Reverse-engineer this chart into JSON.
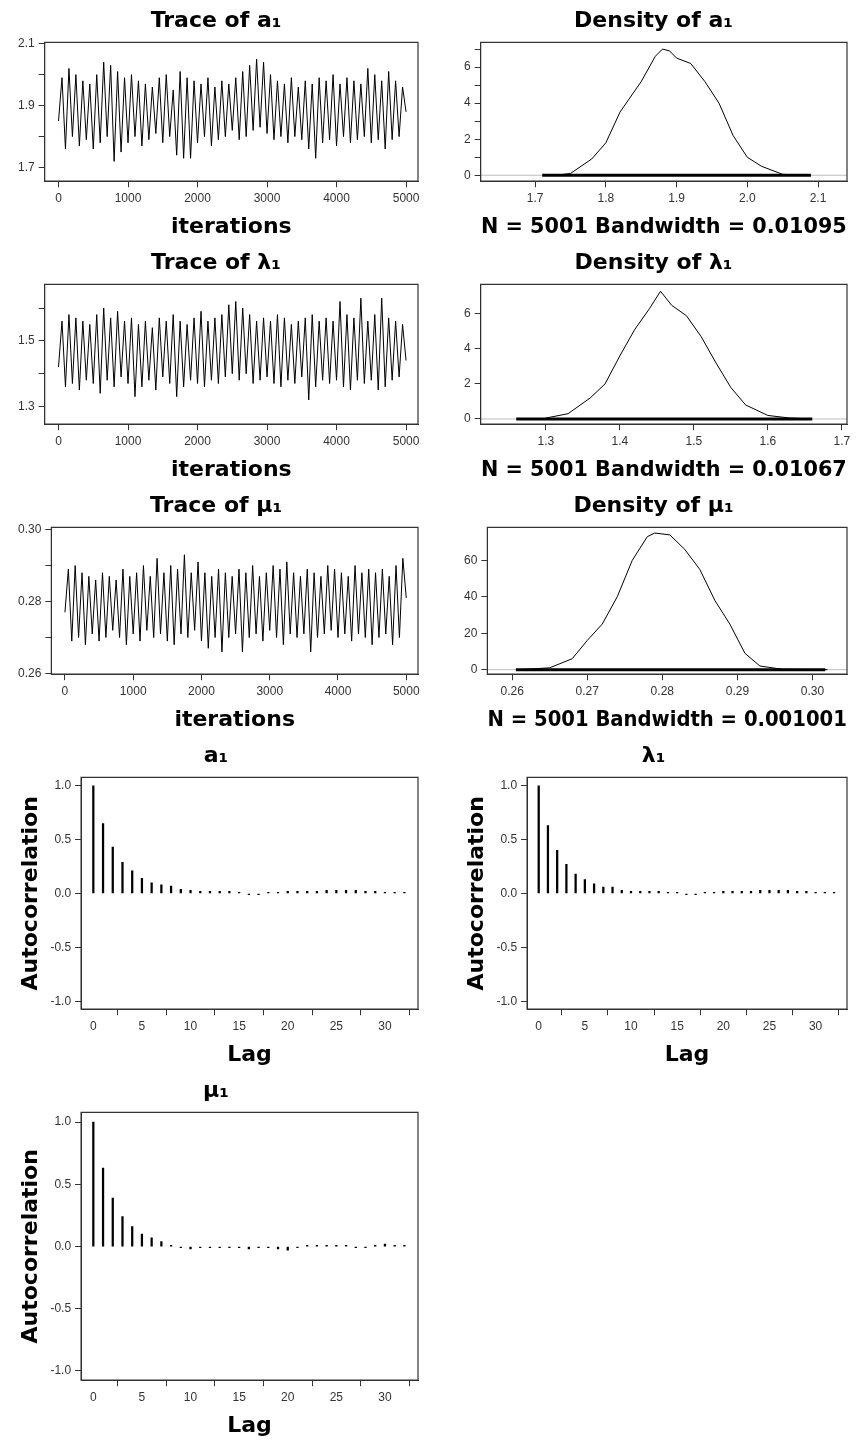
{
  "chart_data": [
    {
      "type": "line",
      "title": "Trace of a₁",
      "xlabel": "iterations",
      "xlim": [
        -199,
        5172
      ],
      "xticks": [
        0,
        1000,
        2000,
        3000,
        4000,
        5000
      ],
      "ylim": [
        1.656,
        2.104
      ],
      "yticks": [
        1.7,
        {
          "value": 1.8,
          "label": null
        },
        1.9,
        {
          "value": 2.0,
          "label": null
        },
        2.1
      ],
      "grid": false,
      "legend": false,
      "marker": "none",
      "line_style": "solid",
      "x": [
        0,
        50,
        100,
        150,
        200,
        250,
        300,
        350,
        400,
        450,
        500,
        550,
        600,
        650,
        700,
        750,
        800,
        850,
        900,
        950,
        1000,
        1050,
        1100,
        1150,
        1200,
        1250,
        1300,
        1350,
        1400,
        1450,
        1500,
        1550,
        1600,
        1650,
        1700,
        1750,
        1800,
        1850,
        1900,
        1950,
        2000,
        2050,
        2100,
        2150,
        2200,
        2250,
        2300,
        2350,
        2400,
        2450,
        2500,
        2550,
        2600,
        2650,
        2700,
        2750,
        2800,
        2850,
        2900,
        2950,
        3000,
        3050,
        3100,
        3150,
        3200,
        3250,
        3300,
        3350,
        3400,
        3450,
        3500,
        3550,
        3600,
        3650,
        3700,
        3750,
        3800,
        3850,
        3900,
        3950,
        4000,
        4050,
        4100,
        4150,
        4200,
        4250,
        4300,
        4350,
        4400,
        4450,
        4500,
        4550,
        4600,
        4650,
        4700,
        4750,
        4800,
        4850,
        4900,
        4950,
        5000
      ],
      "series": [
        {
          "color": "#000000",
          "values": [
            1.85,
            1.99,
            1.76,
            2.02,
            1.8,
            2.0,
            1.77,
            1.98,
            1.79,
            1.97,
            1.76,
            2.0,
            1.78,
            2.04,
            1.8,
            2.03,
            1.72,
            2.01,
            1.75,
            1.99,
            1.78,
            2.0,
            1.8,
            1.98,
            1.77,
            1.97,
            1.79,
            1.96,
            1.81,
            1.99,
            1.78,
            2.0,
            1.8,
            1.95,
            1.74,
            2.01,
            1.73,
            1.99,
            1.73,
            1.98,
            1.78,
            1.97,
            1.8,
            1.99,
            1.77,
            1.96,
            1.79,
            1.98,
            1.8,
            1.97,
            1.82,
            1.99,
            1.79,
            2.01,
            1.8,
            2.03,
            1.82,
            2.05,
            1.83,
            2.04,
            1.81,
            2.0,
            1.79,
            1.98,
            1.8,
            1.97,
            1.78,
            1.99,
            1.8,
            1.96,
            1.79,
            1.98,
            1.76,
            1.97,
            1.73,
            1.99,
            1.78,
            1.98,
            1.79,
            2.0,
            1.77,
            1.97,
            1.8,
            1.99,
            1.78,
            1.98,
            1.79,
            1.97,
            1.8,
            2.02,
            1.78,
            2.0,
            1.79,
            1.98,
            1.76,
            2.01,
            1.79,
            1.98,
            1.8,
            1.96,
            1.88
          ]
        }
      ]
    },
    {
      "type": "line",
      "title": "Density of a₁",
      "xlabel": "N = 5001 Bandwidth = 0.01095",
      "xlim": [
        1.623,
        2.141
      ],
      "xticks": [
        1.7,
        1.8,
        1.9,
        {
          "value": 2.0,
          "label": "2.0"
        },
        2.1
      ],
      "ylim": [
        -0.33,
        7.37
      ],
      "yticks": [
        0,
        {
          "value": 1,
          "label": null
        },
        2,
        {
          "value": 3,
          "label": null
        },
        4,
        {
          "value": 5,
          "label": null
        },
        6,
        {
          "value": 7,
          "label": null
        }
      ],
      "grid": false,
      "legend": false,
      "marker": "none",
      "line_style": "solid",
      "ref_lines": [
        {
          "axis": "y",
          "value": 0,
          "color": "#bebebe"
        }
      ],
      "series": [
        {
          "color": "#000000",
          "x": [
            1.73,
            1.75,
            1.78,
            1.8,
            1.82,
            1.85,
            1.87,
            1.88,
            1.89,
            1.9,
            1.92,
            1.94,
            1.96,
            1.98,
            2.0,
            2.02,
            2.05,
            2.08
          ],
          "values": [
            0,
            0.1,
            0.9,
            1.8,
            3.5,
            5.2,
            6.6,
            7.0,
            6.9,
            6.5,
            6.2,
            5.2,
            4.0,
            2.2,
            1.0,
            0.5,
            0.05,
            0
          ]
        },
        {
          "color": "#000000",
          "x": [
            1.71,
            2.09
          ],
          "values": [
            0,
            0
          ]
        }
      ]
    },
    {
      "type": "line",
      "title": "Trace of λ₁",
      "xlabel": "iterations",
      "xlim": [
        -199,
        5172
      ],
      "xticks": [
        0,
        1000,
        2000,
        3000,
        4000,
        5000
      ],
      "ylim": [
        1.246,
        1.672
      ],
      "yticks": [
        1.3,
        {
          "value": 1.4,
          "label": null
        },
        1.5,
        {
          "value": 1.6,
          "label": null
        }
      ],
      "grid": false,
      "legend": false,
      "marker": "none",
      "line_style": "solid",
      "x": [
        0,
        50,
        100,
        150,
        200,
        250,
        300,
        350,
        400,
        450,
        500,
        550,
        600,
        650,
        700,
        750,
        800,
        850,
        900,
        950,
        1000,
        1050,
        1100,
        1150,
        1200,
        1250,
        1300,
        1350,
        1400,
        1450,
        1500,
        1550,
        1600,
        1650,
        1700,
        1750,
        1800,
        1850,
        1900,
        1950,
        2000,
        2050,
        2100,
        2150,
        2200,
        2250,
        2300,
        2350,
        2400,
        2450,
        2500,
        2550,
        2600,
        2650,
        2700,
        2750,
        2800,
        2850,
        2900,
        2950,
        3000,
        3050,
        3100,
        3150,
        3200,
        3250,
        3300,
        3350,
        3400,
        3450,
        3500,
        3550,
        3600,
        3650,
        3700,
        3750,
        3800,
        3850,
        3900,
        3950,
        4000,
        4050,
        4100,
        4150,
        4200,
        4250,
        4300,
        4350,
        4400,
        4450,
        4500,
        4550,
        4600,
        4650,
        4700,
        4750,
        4800,
        4850,
        4900,
        4950,
        5000
      ],
      "series": [
        {
          "color": "#000000",
          "values": [
            1.42,
            1.56,
            1.36,
            1.58,
            1.37,
            1.57,
            1.35,
            1.56,
            1.38,
            1.55,
            1.37,
            1.58,
            1.34,
            1.6,
            1.38,
            1.57,
            1.36,
            1.59,
            1.39,
            1.56,
            1.37,
            1.57,
            1.33,
            1.55,
            1.36,
            1.56,
            1.38,
            1.54,
            1.35,
            1.57,
            1.39,
            1.56,
            1.37,
            1.58,
            1.33,
            1.56,
            1.36,
            1.55,
            1.38,
            1.57,
            1.37,
            1.59,
            1.36,
            1.56,
            1.38,
            1.57,
            1.37,
            1.58,
            1.39,
            1.61,
            1.4,
            1.62,
            1.38,
            1.6,
            1.4,
            1.58,
            1.37,
            1.56,
            1.38,
            1.57,
            1.39,
            1.56,
            1.37,
            1.58,
            1.36,
            1.57,
            1.38,
            1.55,
            1.37,
            1.56,
            1.39,
            1.57,
            1.32,
            1.58,
            1.36,
            1.56,
            1.38,
            1.57,
            1.37,
            1.56,
            1.38,
            1.62,
            1.36,
            1.58,
            1.35,
            1.57,
            1.38,
            1.63,
            1.37,
            1.56,
            1.38,
            1.58,
            1.35,
            1.63,
            1.36,
            1.57,
            1.38,
            1.56,
            1.39,
            1.55,
            1.44
          ]
        }
      ]
    },
    {
      "type": "line",
      "title": "Density of λ₁",
      "xlabel": "N = 5001 Bandwidth = 0.01067",
      "xlim": [
        1.212,
        1.707
      ],
      "xticks": [
        1.3,
        1.4,
        1.5,
        1.6,
        1.7
      ],
      "ylim": [
        -0.3,
        7.69
      ],
      "yticks": [
        0,
        2,
        4,
        6
      ],
      "grid": false,
      "legend": false,
      "marker": "none",
      "line_style": "solid",
      "ref_lines": [
        {
          "axis": "y",
          "value": 0,
          "color": "#bebebe"
        }
      ],
      "series": [
        {
          "color": "#000000",
          "x": [
            1.3,
            1.33,
            1.36,
            1.38,
            1.4,
            1.42,
            1.44,
            1.455,
            1.47,
            1.49,
            1.51,
            1.53,
            1.55,
            1.57,
            1.6,
            1.63,
            1.66
          ],
          "values": [
            0.05,
            0.3,
            1.2,
            2.0,
            3.6,
            5.1,
            6.3,
            7.3,
            6.5,
            5.9,
            4.7,
            3.2,
            1.8,
            0.8,
            0.2,
            0.05,
            0
          ]
        },
        {
          "color": "#000000",
          "x": [
            1.26,
            1.66
          ],
          "values": [
            0,
            0
          ]
        }
      ]
    },
    {
      "type": "line",
      "title": "Trace of μ₁",
      "xlabel": "iterations",
      "xlim": [
        -199,
        5172
      ],
      "xticks": [
        0,
        1000,
        2000,
        3000,
        4000,
        5000
      ],
      "ylim": [
        0.2598,
        0.3006
      ],
      "yticks": [
        {
          "value": 0.26,
          "label": "0.26"
        },
        {
          "value": 0.27,
          "label": null
        },
        {
          "value": 0.28,
          "label": "0.28"
        },
        {
          "value": 0.29,
          "label": null
        },
        {
          "value": 0.3,
          "label": "0.30"
        }
      ],
      "grid": false,
      "legend": false,
      "marker": "none",
      "line_style": "solid",
      "x": [
        0,
        50,
        100,
        150,
        200,
        250,
        300,
        350,
        400,
        450,
        500,
        550,
        600,
        650,
        700,
        750,
        800,
        850,
        900,
        950,
        1000,
        1050,
        1100,
        1150,
        1200,
        1250,
        1300,
        1350,
        1400,
        1450,
        1500,
        1550,
        1600,
        1650,
        1700,
        1750,
        1800,
        1850,
        1900,
        1950,
        2000,
        2050,
        2100,
        2150,
        2200,
        2250,
        2300,
        2350,
        2400,
        2450,
        2500,
        2550,
        2600,
        2650,
        2700,
        2750,
        2800,
        2850,
        2900,
        2950,
        3000,
        3050,
        3100,
        3150,
        3200,
        3250,
        3300,
        3350,
        3400,
        3450,
        3500,
        3550,
        3600,
        3650,
        3700,
        3750,
        3800,
        3850,
        3900,
        3950,
        4000,
        4050,
        4100,
        4150,
        4200,
        4250,
        4300,
        4350,
        4400,
        4450,
        4500,
        4550,
        4600,
        4650,
        4700,
        4750,
        4800,
        4850,
        4900,
        4950,
        5000
      ],
      "series": [
        {
          "color": "#000000",
          "values": [
            0.277,
            0.289,
            0.269,
            0.29,
            0.27,
            0.288,
            0.268,
            0.287,
            0.271,
            0.286,
            0.269,
            0.288,
            0.27,
            0.287,
            0.272,
            0.286,
            0.27,
            0.289,
            0.268,
            0.287,
            0.271,
            0.288,
            0.269,
            0.29,
            0.272,
            0.287,
            0.27,
            0.292,
            0.271,
            0.288,
            0.269,
            0.29,
            0.268,
            0.289,
            0.271,
            0.293,
            0.27,
            0.288,
            0.272,
            0.291,
            0.269,
            0.288,
            0.267,
            0.287,
            0.27,
            0.289,
            0.266,
            0.288,
            0.27,
            0.287,
            0.271,
            0.289,
            0.266,
            0.288,
            0.27,
            0.29,
            0.271,
            0.287,
            0.269,
            0.288,
            0.272,
            0.29,
            0.27,
            0.289,
            0.268,
            0.291,
            0.271,
            0.288,
            0.27,
            0.287,
            0.271,
            0.289,
            0.266,
            0.288,
            0.27,
            0.287,
            0.271,
            0.29,
            0.272,
            0.289,
            0.27,
            0.288,
            0.271,
            0.287,
            0.269,
            0.29,
            0.271,
            0.288,
            0.27,
            0.289,
            0.268,
            0.288,
            0.27,
            0.289,
            0.271,
            0.287,
            0.268,
            0.29,
            0.27,
            0.292,
            0.281
          ]
        }
      ]
    },
    {
      "type": "line",
      "title": "Density of μ₁",
      "xlabel": "N = 5001 Bandwidth = 0.001001",
      "xlim": [
        0.2567,
        0.3046
      ],
      "xticks": [
        {
          "value": 0.26,
          "label": "0.26"
        },
        0.27,
        0.28,
        0.29,
        {
          "value": 0.3,
          "label": "0.30"
        }
      ],
      "ylim": [
        -2.5,
        78.1
      ],
      "yticks": [
        0,
        20,
        40,
        60
      ],
      "grid": false,
      "legend": false,
      "marker": "none",
      "line_style": "solid",
      "ref_lines": [
        {
          "axis": "y",
          "value": 0,
          "color": "#bebebe"
        }
      ],
      "series": [
        {
          "color": "#000000",
          "x": [
            0.261,
            0.265,
            0.268,
            0.27,
            0.272,
            0.274,
            0.276,
            0.278,
            0.279,
            0.281,
            0.283,
            0.285,
            0.287,
            0.289,
            0.291,
            0.293,
            0.296,
            0.302
          ],
          "values": [
            0,
            1,
            6,
            16,
            25,
            40,
            60,
            73,
            75,
            74,
            66,
            55,
            38,
            25,
            9,
            2,
            0.2,
            0
          ]
        },
        {
          "color": "#000000",
          "x": [
            0.2605,
            0.3017
          ],
          "values": [
            0,
            0
          ]
        }
      ]
    },
    {
      "type": "bar",
      "title": "a₁",
      "xlabel": "Lag",
      "ylabel": "Autocorrelation",
      "xlim": [
        -1.26,
        33.4
      ],
      "xticks": [
        0,
        5,
        10,
        15,
        20,
        25,
        30
      ],
      "ylim": [
        -1.074,
        1.078
      ],
      "yticks": [
        {
          "value": -1,
          "label": "-1.0"
        },
        -0.5,
        {
          "value": 0,
          "label": "0.0"
        },
        0.5,
        {
          "value": 1,
          "label": "1.0"
        }
      ],
      "grid": false,
      "legend": false,
      "x": [
        0,
        1,
        2,
        3,
        4,
        5,
        6,
        7,
        8,
        9,
        10,
        11,
        12,
        13,
        14,
        15,
        16,
        17,
        18,
        19,
        20,
        21,
        22,
        23,
        24,
        25,
        26,
        27,
        28,
        29,
        30,
        31,
        32
      ],
      "series": [
        {
          "color": "#000000",
          "values": [
            1,
            0.65,
            0.43,
            0.29,
            0.21,
            0.14,
            0.1,
            0.08,
            0.07,
            0.04,
            0.03,
            0.02,
            0.02,
            0.02,
            0.02,
            0.01,
            -0.01,
            -0.01,
            0.01,
            0.01,
            0.02,
            0.02,
            0.02,
            0.02,
            0.03,
            0.03,
            0.03,
            0.03,
            0.02,
            0.02,
            0.01,
            0.01,
            0.01
          ]
        }
      ]
    },
    {
      "type": "bar",
      "title": "λ₁",
      "xlabel": "Lag",
      "ylabel": "Autocorrelation",
      "xlim": [
        -1.26,
        33.4
      ],
      "xticks": [
        0,
        5,
        10,
        15,
        20,
        25,
        30
      ],
      "ylim": [
        -1.074,
        1.078
      ],
      "yticks": [
        {
          "value": -1,
          "label": "-1.0"
        },
        -0.5,
        {
          "value": 0,
          "label": "0.0"
        },
        0.5,
        {
          "value": 1,
          "label": "1.0"
        }
      ],
      "grid": false,
      "legend": false,
      "x": [
        0,
        1,
        2,
        3,
        4,
        5,
        6,
        7,
        8,
        9,
        10,
        11,
        12,
        13,
        14,
        15,
        16,
        17,
        18,
        19,
        20,
        21,
        22,
        23,
        24,
        25,
        26,
        27,
        28,
        29,
        30,
        31,
        32
      ],
      "series": [
        {
          "color": "#000000",
          "values": [
            1,
            0.63,
            0.4,
            0.27,
            0.18,
            0.13,
            0.09,
            0.06,
            0.06,
            0.03,
            0.02,
            0.02,
            0.02,
            0.02,
            0.01,
            0.01,
            -0.01,
            -0.01,
            0.01,
            0.01,
            0.02,
            0.02,
            0.02,
            0.02,
            0.03,
            0.03,
            0.03,
            0.03,
            0.02,
            0.02,
            0.01,
            0.01,
            0.01
          ]
        }
      ]
    },
    {
      "type": "bar",
      "title": "μ₁",
      "xlabel": "Lag",
      "ylabel": "Autocorrelation",
      "xlim": [
        -1.26,
        33.4
      ],
      "xticks": [
        0,
        5,
        10,
        15,
        20,
        25,
        30
      ],
      "ylim": [
        -1.074,
        1.078
      ],
      "yticks": [
        {
          "value": -1,
          "label": "-1.0"
        },
        -0.5,
        {
          "value": 0,
          "label": "0.0"
        },
        0.5,
        {
          "value": 1,
          "label": "1.0"
        }
      ],
      "grid": false,
      "legend": false,
      "x": [
        0,
        1,
        2,
        3,
        4,
        5,
        6,
        7,
        8,
        9,
        10,
        11,
        12,
        13,
        14,
        15,
        16,
        17,
        18,
        19,
        20,
        21,
        22,
        23,
        24,
        25,
        26,
        27,
        28,
        29,
        30,
        31,
        32
      ],
      "series": [
        {
          "color": "#000000",
          "values": [
            1,
            0.63,
            0.39,
            0.24,
            0.16,
            0.1,
            0.07,
            0.04,
            0.01,
            -0.01,
            -0.02,
            -0.01,
            -0.01,
            -0.01,
            -0.01,
            -0.01,
            -0.02,
            -0.01,
            -0.01,
            -0.02,
            -0.03,
            -0.01,
            0.01,
            0.01,
            0.01,
            0.01,
            0.01,
            -0.01,
            -0.01,
            0.01,
            0.02,
            0.01,
            0.01
          ]
        }
      ]
    }
  ]
}
